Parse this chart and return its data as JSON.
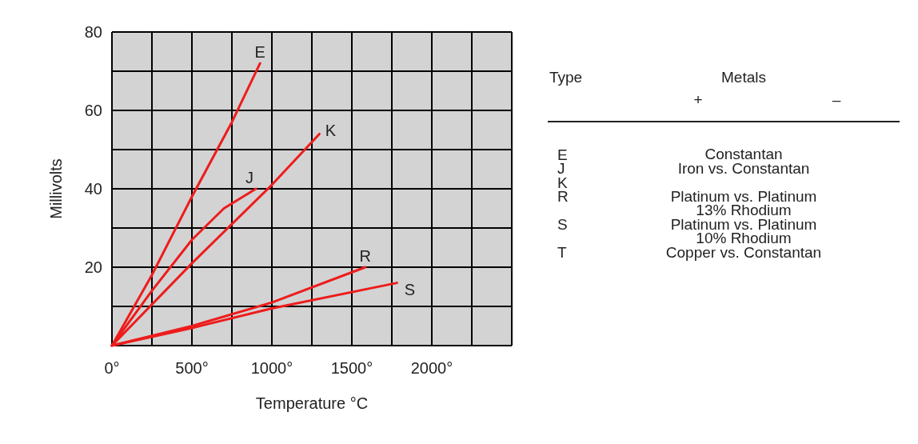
{
  "chart_data": {
    "type": "line",
    "xlabel": "Temperature °C",
    "ylabel": "Millivolts",
    "xlim": [
      0,
      2500
    ],
    "ylim": [
      0,
      80
    ],
    "xticks": [
      {
        "value": 0,
        "label": "0°"
      },
      {
        "value": 250,
        "label": null
      },
      {
        "value": 500,
        "label": "500°"
      },
      {
        "value": 750,
        "label": null
      },
      {
        "value": 1000,
        "label": "1000°"
      },
      {
        "value": 1250,
        "label": null
      },
      {
        "value": 1500,
        "label": "1500°"
      },
      {
        "value": 1750,
        "label": null
      },
      {
        "value": 2000,
        "label": "2000°"
      },
      {
        "value": 2250,
        "label": null
      },
      {
        "value": 2500,
        "label": null
      }
    ],
    "yticks": [
      {
        "value": 0,
        "label": null
      },
      {
        "value": 10,
        "label": null
      },
      20,
      {
        "value": 30,
        "label": null
      },
      40,
      {
        "value": 50,
        "label": null
      },
      60,
      {
        "value": 70,
        "label": null
      },
      80
    ],
    "grid": true,
    "legend": false,
    "marker": "none",
    "line_style": "solid",
    "series": [
      {
        "name": "E",
        "color": "#ee1c1c",
        "x": [
          0,
          250,
          500,
          750,
          926
        ],
        "values": [
          0,
          18,
          38,
          57,
          72
        ]
      },
      {
        "name": "K",
        "color": "#ee1c1c",
        "x": [
          0,
          500,
          1000,
          1297
        ],
        "values": [
          0,
          21,
          41,
          54
        ]
      },
      {
        "name": "J",
        "color": "#ee1c1c",
        "x": [
          0,
          250,
          500,
          700,
          900
        ],
        "values": [
          0,
          14,
          27,
          35,
          40
        ]
      },
      {
        "name": "R",
        "color": "#ee1c1c",
        "x": [
          0,
          500,
          1000,
          1584
        ],
        "values": [
          0,
          5,
          11,
          20
        ]
      },
      {
        "name": "S",
        "color": "#ee1c1c",
        "x": [
          0,
          500,
          1000,
          1782
        ],
        "values": [
          0,
          4.5,
          9.5,
          16
        ]
      }
    ],
    "annotations": [
      "Type",
      "Metals",
      "+",
      "–",
      "E",
      "Constantan",
      "J",
      "Iron vs. Constantan",
      "K",
      null,
      "R",
      "Platinum vs. Platinum\n13% Rhodium",
      "S",
      "Platinum vs. Platinum\n10% Rhodium",
      "T",
      "Copper vs. Constantan"
    ]
  }
}
